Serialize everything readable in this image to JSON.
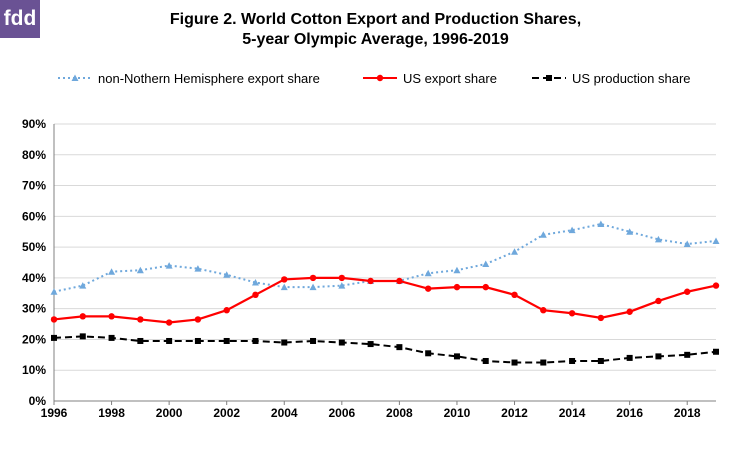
{
  "logo": {
    "text": "fdd",
    "color": "#6a5294"
  },
  "chart_data": {
    "type": "line",
    "title": "Figure 2. World Cotton Export and Production Shares,",
    "subtitle": "5-year Olympic Average, 1996-2019",
    "x": [
      1996,
      1997,
      1998,
      1999,
      2000,
      2001,
      2002,
      2003,
      2004,
      2005,
      2006,
      2007,
      2008,
      2009,
      2010,
      2011,
      2012,
      2013,
      2014,
      2015,
      2016,
      2017,
      2018,
      2019
    ],
    "x_tick_labels": [
      "1996",
      "1998",
      "2000",
      "2002",
      "2004",
      "2006",
      "2008",
      "2010",
      "2012",
      "2014",
      "2016",
      "2018"
    ],
    "y_tick_labels": [
      "0%",
      "10%",
      "20%",
      "30%",
      "40%",
      "50%",
      "60%",
      "70%",
      "80%",
      "90%"
    ],
    "ylim": [
      0,
      90
    ],
    "xlim": [
      1996,
      2019
    ],
    "grid": "horizontal",
    "legend_position": "top",
    "series": [
      {
        "name": "non-Nothern Hemisphere export share",
        "color": "#6fa8dc",
        "style": "dotted",
        "marker": "triangle",
        "values": [
          35.5,
          37.5,
          42,
          42.5,
          44,
          43,
          41,
          38.5,
          37,
          37,
          37.5,
          39,
          39,
          41.5,
          42.5,
          44.5,
          48.5,
          54,
          55.5,
          57.5,
          55,
          52.5,
          51,
          52
        ]
      },
      {
        "name": "US export share",
        "color": "#ff0000",
        "style": "solid",
        "marker": "circle",
        "values": [
          26.5,
          27.5,
          27.5,
          26.5,
          25.5,
          26.5,
          29.5,
          34.5,
          39.5,
          40,
          40,
          39,
          39,
          36.5,
          37,
          37,
          34.5,
          29.5,
          28.5,
          27,
          29,
          32.5,
          35.5,
          37.5
        ]
      },
      {
        "name": "US production share",
        "color": "#000000",
        "style": "dashed",
        "marker": "square",
        "values": [
          20.5,
          21,
          20.5,
          19.5,
          19.5,
          19.5,
          19.5,
          19.5,
          19,
          19.5,
          19,
          18.5,
          17.5,
          15.5,
          14.5,
          13,
          12.5,
          12.5,
          13,
          13,
          14,
          14.5,
          15,
          16
        ]
      }
    ]
  }
}
